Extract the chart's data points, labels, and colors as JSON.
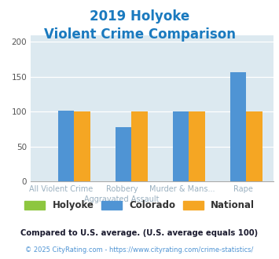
{
  "title_line1": "2019 Holyoke",
  "title_line2": "Violent Crime Comparison",
  "title_color": "#1a7abf",
  "holyoke": [
    0,
    0,
    0,
    0
  ],
  "colorado": [
    101,
    78,
    100,
    157
  ],
  "national": [
    100,
    100,
    100,
    100
  ],
  "holyoke_color": "#8dc63f",
  "colorado_color": "#4f94d4",
  "national_color": "#f5a623",
  "ylim": [
    0,
    210
  ],
  "yticks": [
    0,
    50,
    100,
    150,
    200
  ],
  "plot_bg": "#dce9f0",
  "legend_labels": [
    "Holyoke",
    "Colorado",
    "National"
  ],
  "cat_top": [
    "",
    "Robbery",
    "Murder & Mans...",
    ""
  ],
  "cat_bot": [
    "All Violent Crime",
    "Aggravated Assault",
    "",
    "Rape"
  ],
  "footnote1": "Compared to U.S. average. (U.S. average equals 100)",
  "footnote2": "© 2025 CityRating.com - https://www.cityrating.com/crime-statistics/",
  "footnote1_color": "#1a1a2e",
  "footnote2_color": "#4f94d4",
  "xlabel_color": "#9ab0c0",
  "bar_width": 0.28
}
